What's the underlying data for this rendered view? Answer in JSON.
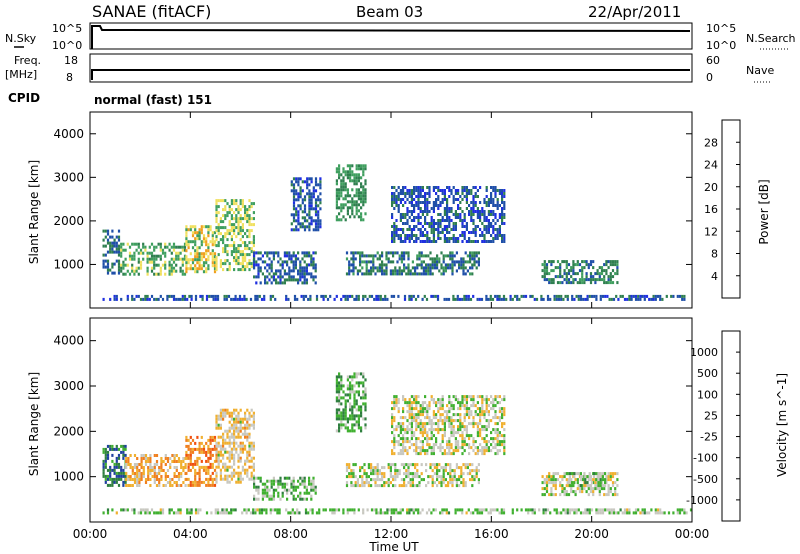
{
  "header": {
    "station": "SANAE (fitACF)",
    "beam": "Beam 03",
    "date": "22/Apr/2011",
    "cpid_label": "CPID",
    "cpid_value": "normal (fast) 151"
  },
  "top_panels": {
    "nsky_label": "N.Sky",
    "nsky_ticks": [
      "10^5",
      "10^0"
    ],
    "nsearch_label": "N.Search",
    "nsearch_ticks": [
      "10^5",
      "10^0"
    ],
    "freq_label": "Freq.",
    "freq_unit": "[MHz]",
    "freq_ticks": [
      "18",
      "8"
    ],
    "nave_label": "Nave",
    "nave_ticks": [
      "60",
      "0"
    ]
  },
  "colors": {
    "power": [
      "#1f2fe0",
      "#1f4fa8",
      "#2f7f4f",
      "#3f9f5f",
      "#f0e060",
      "#f0a020",
      "#e07010",
      "#e02010"
    ],
    "velocity": [
      "#e01010",
      "#f05010",
      "#f08020",
      "#f0b030",
      "#c8c8c0",
      "#40b030",
      "#2f7f3f",
      "#2040a0",
      "#1f2fd0"
    ]
  },
  "chart_data": [
    {
      "type": "heatmap",
      "title": "",
      "xlabel": "",
      "ylabel": "Slant Range [km]",
      "x_ticks": [
        "00:00",
        "04:00",
        "08:00",
        "12:00",
        "16:00",
        "20:00",
        "00:00"
      ],
      "y_ticks": [
        "1000",
        "2000",
        "3000",
        "4000"
      ],
      "ylim": [
        0,
        4500
      ],
      "xlim_hours": [
        0,
        24
      ],
      "colorbar_label": "Power [dB]",
      "colorbar_ticks": [
        "4",
        "8",
        "12",
        "16",
        "20",
        "24",
        "28"
      ],
      "colorbar_range": [
        0,
        32
      ],
      "regions": [
        {
          "t": [
            0.5,
            1.2
          ],
          "r": [
            800,
            1800
          ],
          "v": 8
        },
        {
          "t": [
            1.2,
            3.8
          ],
          "r": [
            800,
            1500
          ],
          "v": 14
        },
        {
          "t": [
            3.8,
            5.0
          ],
          "r": [
            800,
            1900
          ],
          "v": 18
        },
        {
          "t": [
            5.0,
            6.5
          ],
          "r": [
            900,
            2500
          ],
          "v": 16
        },
        {
          "t": [
            6.5,
            9.0
          ],
          "r": [
            600,
            1300
          ],
          "v": 7
        },
        {
          "t": [
            8.0,
            9.2
          ],
          "r": [
            1800,
            3000
          ],
          "v": 6
        },
        {
          "t": [
            9.8,
            11.0
          ],
          "r": [
            2000,
            3300
          ],
          "v": 12
        },
        {
          "t": [
            10.2,
            15.5
          ],
          "r": [
            800,
            1300
          ],
          "v": 9
        },
        {
          "t": [
            12.0,
            16.5
          ],
          "r": [
            1500,
            2800
          ],
          "v": 6
        },
        {
          "t": [
            18.0,
            21.0
          ],
          "r": [
            600,
            1100
          ],
          "v": 10
        },
        {
          "t": [
            0.5,
            24.0
          ],
          "r": [
            180,
            300
          ],
          "v": 6
        }
      ]
    },
    {
      "type": "heatmap",
      "title": "",
      "xlabel": "Time UT",
      "ylabel": "Slant Range [km]",
      "x_ticks": [
        "00:00",
        "04:00",
        "08:00",
        "12:00",
        "16:00",
        "20:00",
        "00:00"
      ],
      "y_ticks": [
        "1000",
        "2000",
        "3000",
        "4000"
      ],
      "ylim": [
        0,
        4500
      ],
      "xlim_hours": [
        0,
        24
      ],
      "colorbar_label": "Velocity [m s^-1]",
      "colorbar_ticks": [
        "1000",
        "500",
        "100",
        "25",
        "-25",
        "-100",
        "-500",
        "-1000"
      ],
      "colorbar_range": [
        -1200,
        1200
      ],
      "regions": [
        {
          "t": [
            0.5,
            1.4
          ],
          "r": [
            800,
            1700
          ],
          "v": -600
        },
        {
          "t": [
            1.4,
            3.8
          ],
          "r": [
            800,
            1500
          ],
          "v": 300
        },
        {
          "t": [
            3.8,
            5.0
          ],
          "r": [
            800,
            1900
          ],
          "v": 500
        },
        {
          "t": [
            5.0,
            6.5
          ],
          "r": [
            900,
            2500
          ],
          "v": 150
        },
        {
          "t": [
            6.5,
            9.0
          ],
          "r": [
            500,
            1000
          ],
          "v": -200
        },
        {
          "t": [
            9.8,
            11.0
          ],
          "r": [
            2000,
            3300
          ],
          "v": -300
        },
        {
          "t": [
            10.2,
            15.5
          ],
          "r": [
            800,
            1300
          ],
          "v": 0
        },
        {
          "t": [
            12.0,
            16.5
          ],
          "r": [
            1500,
            2800
          ],
          "v": 0
        },
        {
          "t": [
            18.0,
            21.0
          ],
          "r": [
            600,
            1100
          ],
          "v": 0
        },
        {
          "t": [
            19.0,
            20.5
          ],
          "r": [
            800,
            1100
          ],
          "v": -200
        },
        {
          "t": [
            0.5,
            24.0
          ],
          "r": [
            180,
            300
          ],
          "v": -150
        }
      ]
    }
  ]
}
